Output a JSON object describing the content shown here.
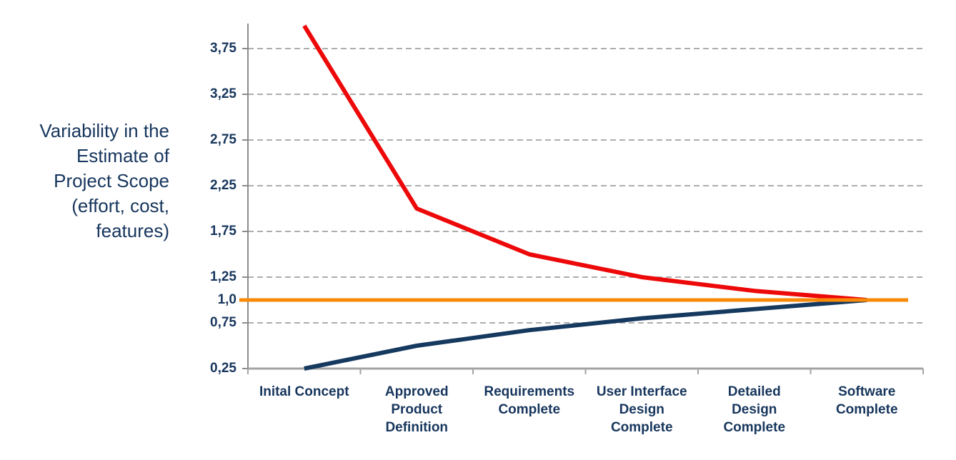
{
  "background": "#FFFFFF",
  "chart_data": {
    "type": "line",
    "title_left": "Variability in the\nEstimate of\nProject Scope\n(effort, cost,\nfeatures)",
    "x_axis": {
      "categories": [
        {
          "name": "initial-concept",
          "label": "Inital Concept"
        },
        {
          "name": "approved-product-definition",
          "label": "Approved\nProduct\nDefinition"
        },
        {
          "name": "requirements-complete",
          "label": "Requirements\nComplete"
        },
        {
          "name": "user-interface-design-complete",
          "label": "User Interface\nDesign\nComplete"
        },
        {
          "name": "detailed-design-complete",
          "label": "Detailed\nDesign\nComplete"
        },
        {
          "name": "software-complete",
          "label": "Software\nComplete"
        }
      ]
    },
    "y_axis": {
      "lim": [
        0.25,
        4.0
      ],
      "ticks": [
        {
          "label": "3,75",
          "value": 3.75,
          "gridline": true
        },
        {
          "label": "3,25",
          "value": 3.25,
          "gridline": true
        },
        {
          "label": "2,75",
          "value": 2.75,
          "gridline": true
        },
        {
          "label": "2,25",
          "value": 2.25,
          "gridline": true
        },
        {
          "label": "1,75",
          "value": 1.75,
          "gridline": true
        },
        {
          "label": "1,25",
          "value": 1.25,
          "gridline": true
        },
        {
          "label": "1,0",
          "value": 1.0,
          "gridline": false
        },
        {
          "label": "0,75",
          "value": 0.75,
          "gridline": true
        },
        {
          "label": "0,25",
          "value": 0.25,
          "gridline": false
        }
      ]
    },
    "series": [
      {
        "name": "upper-estimate-variability",
        "color": "#ED0909",
        "stroke_width": 6,
        "values": [
          4.0,
          2.0,
          1.5,
          1.25,
          1.1,
          1.0
        ],
        "full_span": false
      },
      {
        "name": "lower-estimate-variability",
        "color": "#16395F",
        "stroke_width": 6,
        "values": [
          0.25,
          0.5,
          0.67,
          0.8,
          0.9,
          1.0
        ],
        "full_span": false
      },
      {
        "name": "final-value-baseline",
        "color": "#F98908",
        "stroke_width": 5,
        "values": [
          1.0,
          1.0,
          1.0,
          1.0,
          1.0,
          1.0
        ],
        "full_span": true
      }
    ],
    "grid_color": "#ADADAD",
    "axis_color": "#8C8C8C",
    "x_axis_color": "#A3A3A3",
    "text_color": "#17365D",
    "legend": "none",
    "grid_style": "dashed-horizontal"
  }
}
